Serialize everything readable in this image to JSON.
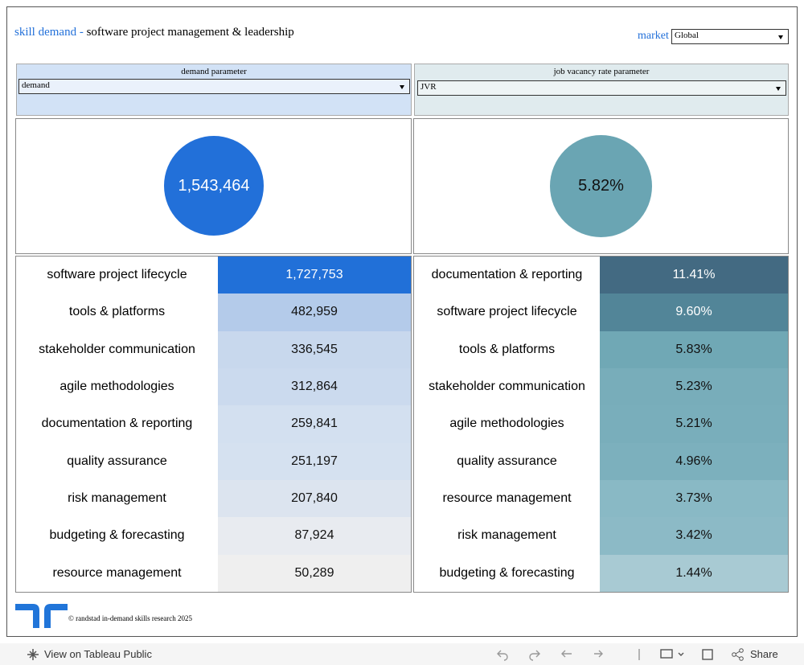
{
  "header": {
    "title_prefix": "skill demand - ",
    "title": "software project management & leadership",
    "market_label": "market",
    "market_value": "Global"
  },
  "parameters": [
    {
      "label": "demand parameter",
      "value": "demand"
    },
    {
      "label": "job vacancy rate parameter",
      "value": "JVR"
    }
  ],
  "kpis": [
    {
      "value": "1,543,464",
      "color": "#2270d9",
      "text_color": "#ffffff"
    },
    {
      "value": "5.82%",
      "color": "#6aa5b3",
      "text_color": "#111111"
    }
  ],
  "tables": [
    {
      "rows": [
        {
          "label": "software project lifecycle",
          "value": "1,727,753",
          "color": "#2170d8",
          "text_color": "#ffffff"
        },
        {
          "label": "tools & platforms",
          "value": "482,959",
          "color": "#b4cbea",
          "text_color": "#111111"
        },
        {
          "label": "stakeholder communication",
          "value": "336,545",
          "color": "#c8d8ed",
          "text_color": "#111111"
        },
        {
          "label": "agile methodologies",
          "value": "312,864",
          "color": "#cbdaee",
          "text_color": "#111111"
        },
        {
          "label": "documentation & reporting",
          "value": "259,841",
          "color": "#d3e0f0",
          "text_color": "#111111"
        },
        {
          "label": "quality assurance",
          "value": "251,197",
          "color": "#d5e1f0",
          "text_color": "#111111"
        },
        {
          "label": "risk management",
          "value": "207,840",
          "color": "#dce4ef",
          "text_color": "#111111"
        },
        {
          "label": "budgeting & forecasting",
          "value": "87,924",
          "color": "#e8ebf0",
          "text_color": "#111111"
        },
        {
          "label": "resource management",
          "value": "50,289",
          "color": "#efefef",
          "text_color": "#111111"
        }
      ]
    },
    {
      "rows": [
        {
          "label": "documentation & reporting",
          "value": "11.41%",
          "color": "#436a82",
          "text_color": "#ffffff"
        },
        {
          "label": "software project lifecycle",
          "value": "9.60%",
          "color": "#528598",
          "text_color": "#ffffff"
        },
        {
          "label": "tools & platforms",
          "value": "5.83%",
          "color": "#70a8b5",
          "text_color": "#111111"
        },
        {
          "label": "stakeholder communication",
          "value": "5.23%",
          "color": "#78adba",
          "text_color": "#111111"
        },
        {
          "label": "agile methodologies",
          "value": "5.21%",
          "color": "#79aebb",
          "text_color": "#111111"
        },
        {
          "label": "quality assurance",
          "value": "4.96%",
          "color": "#7cb0bd",
          "text_color": "#111111"
        },
        {
          "label": "resource management",
          "value": "3.73%",
          "color": "#89b9c5",
          "text_color": "#111111"
        },
        {
          "label": "risk management",
          "value": "3.42%",
          "color": "#8cbac6",
          "text_color": "#111111"
        },
        {
          "label": "budgeting & forecasting",
          "value": "1.44%",
          "color": "#a8cad3",
          "text_color": "#111111"
        }
      ]
    }
  ],
  "footer": {
    "credit": "© randstad in-demand skills research 2025"
  },
  "toolbar": {
    "view_link": "View on Tableau Public",
    "share": "Share"
  }
}
